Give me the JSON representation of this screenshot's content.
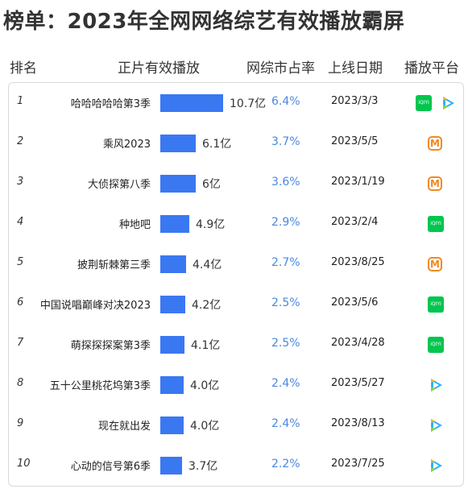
{
  "title": "榜单：2023年全网网络综艺有效播放霸屏",
  "headers": {
    "rank": "排名",
    "plays": "正片有效播放",
    "share": "网综市占率",
    "date": "上线日期",
    "platform": "播放平台"
  },
  "platform_labels": {
    "iqiyi": "iQIYI"
  },
  "colors": {
    "bar": "#3a78f2",
    "share_text": "#4a88e0",
    "iqiyi": "#00c64f",
    "mango": "#f08a24",
    "tencent": "#2ab3ff"
  },
  "chart_data": {
    "type": "bar",
    "title": "榜单：2023年全网网络综艺有效播放霸屏",
    "unit": "亿",
    "rows": [
      {
        "rank": "1",
        "name": "哈哈哈哈哈第3季",
        "plays": 10.7,
        "plays_label": "10.7亿",
        "share": "6.4%",
        "date": "2023/3/3",
        "platforms": [
          "iqiyi",
          "tencent"
        ]
      },
      {
        "rank": "2",
        "name": "乘风2023",
        "plays": 6.1,
        "plays_label": "6.1亿",
        "share": "3.7%",
        "date": "2023/5/5",
        "platforms": [
          "mango"
        ]
      },
      {
        "rank": "3",
        "name": "大侦探第八季",
        "plays": 6.0,
        "plays_label": "6亿",
        "share": "3.6%",
        "date": "2023/1/19",
        "platforms": [
          "mango"
        ]
      },
      {
        "rank": "4",
        "name": "种地吧",
        "plays": 4.9,
        "plays_label": "4.9亿",
        "share": "2.9%",
        "date": "2023/2/4",
        "platforms": [
          "iqiyi"
        ]
      },
      {
        "rank": "5",
        "name": "披荆斩棘第三季",
        "plays": 4.4,
        "plays_label": "4.4亿",
        "share": "2.7%",
        "date": "2023/8/25",
        "platforms": [
          "mango"
        ]
      },
      {
        "rank": "6",
        "name": "中国说唱巅峰对决2023",
        "plays": 4.2,
        "plays_label": "4.2亿",
        "share": "2.5%",
        "date": "2023/5/6",
        "platforms": [
          "iqiyi"
        ]
      },
      {
        "rank": "7",
        "name": "萌探探探案第3季",
        "plays": 4.1,
        "plays_label": "4.1亿",
        "share": "2.5%",
        "date": "2023/4/28",
        "platforms": [
          "iqiyi"
        ]
      },
      {
        "rank": "8",
        "name": "五十公里桃花坞第3季",
        "plays": 4.0,
        "plays_label": "4.0亿",
        "share": "2.4%",
        "date": "2023/5/27",
        "platforms": [
          "tencent"
        ]
      },
      {
        "rank": "9",
        "name": "现在就出发",
        "plays": 4.0,
        "plays_label": "4.0亿",
        "share": "2.4%",
        "date": "2023/8/13",
        "platforms": [
          "tencent"
        ]
      },
      {
        "rank": "10",
        "name": "心动的信号第6季",
        "plays": 3.7,
        "plays_label": "3.7亿",
        "share": "2.2%",
        "date": "2023/7/25",
        "platforms": [
          "tencent"
        ]
      }
    ]
  }
}
